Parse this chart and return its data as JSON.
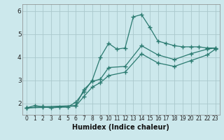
{
  "xlabel": "Humidex (Indice chaleur)",
  "xlim": [
    -0.5,
    23.5
  ],
  "ylim": [
    1.5,
    6.3
  ],
  "yticks": [
    2,
    3,
    4,
    5,
    6
  ],
  "xticks": [
    0,
    1,
    2,
    3,
    4,
    5,
    6,
    7,
    8,
    9,
    10,
    11,
    12,
    13,
    14,
    15,
    16,
    17,
    18,
    19,
    20,
    21,
    22,
    23
  ],
  "bg_color": "#cce8ec",
  "grid_color": "#aac8cc",
  "line_color": "#2a7a70",
  "line1_x": [
    0,
    1,
    2,
    3,
    4,
    5,
    6,
    7,
    8,
    9,
    10,
    11,
    12,
    13,
    14,
    15,
    16,
    17,
    18,
    19,
    20,
    21,
    22,
    23
  ],
  "line1_y": [
    1.8,
    1.9,
    1.85,
    1.8,
    1.83,
    1.83,
    2.05,
    2.5,
    3.0,
    4.0,
    4.6,
    4.35,
    4.4,
    5.75,
    5.85,
    5.3,
    4.7,
    4.6,
    4.5,
    4.45,
    4.45,
    4.45,
    4.4,
    4.4
  ],
  "line2_x": [
    0,
    2,
    6,
    7,
    8,
    9,
    10,
    12,
    14,
    16,
    18,
    20,
    22,
    23
  ],
  "line2_y": [
    1.8,
    1.85,
    1.9,
    2.6,
    2.95,
    3.05,
    3.55,
    3.6,
    4.5,
    4.1,
    3.9,
    4.15,
    4.35,
    4.4
  ],
  "line3_x": [
    0,
    2,
    6,
    7,
    8,
    9,
    10,
    12,
    14,
    16,
    18,
    20,
    22,
    23
  ],
  "line3_y": [
    1.8,
    1.82,
    1.88,
    2.3,
    2.7,
    2.9,
    3.2,
    3.35,
    4.15,
    3.75,
    3.6,
    3.85,
    4.1,
    4.35
  ]
}
